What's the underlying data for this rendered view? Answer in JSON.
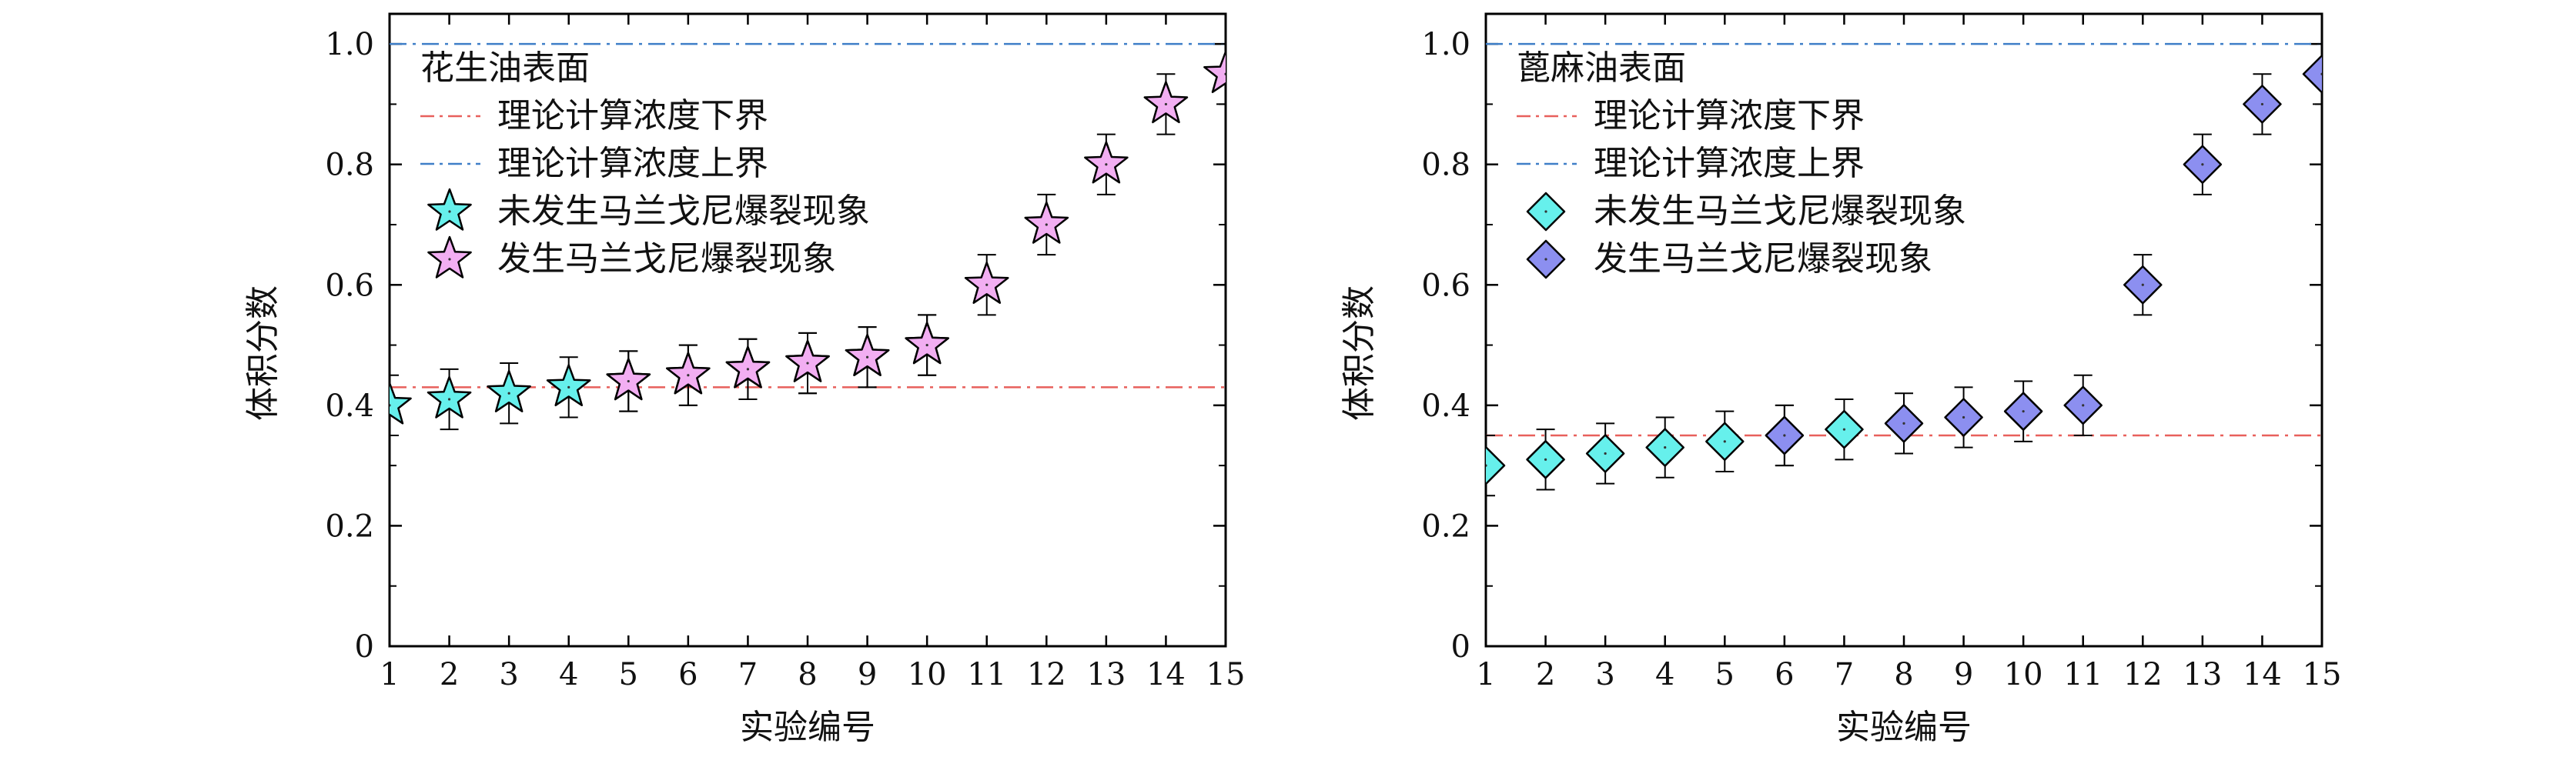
{
  "chart_data": [
    {
      "type": "scatter",
      "title": "",
      "xlabel": "实验编号",
      "ylabel": "体积分数",
      "xlim": [
        1,
        15
      ],
      "ylim": [
        0,
        1.05
      ],
      "xticks": [
        "1",
        "2",
        "3",
        "4",
        "5",
        "6",
        "7",
        "8",
        "9",
        "10",
        "11",
        "12",
        "13",
        "14",
        "15"
      ],
      "yticks": [
        "0",
        "0.2",
        "0.4",
        "0.6",
        "0.8",
        "1.0"
      ],
      "grid": false,
      "legend_position": "top-left",
      "legend_title": "花生油表面",
      "marker": "star",
      "reference_lines": [
        {
          "name": "理论计算浓度下界",
          "y": 0.43,
          "color": "#e8605c",
          "style": "dash-dot"
        },
        {
          "name": "理论计算浓度上界",
          "y": 1.0,
          "color": "#3f7fc8",
          "style": "dash-dot"
        }
      ],
      "series": [
        {
          "name": "未发生马兰戈尼爆裂现象",
          "color": "#66f0ec",
          "x": [
            1,
            2,
            3,
            4,
            5,
            6,
            7,
            8,
            9,
            10
          ],
          "y": [
            0.4,
            0.41,
            0.42,
            0.43,
            0.44,
            0.45,
            0.46,
            0.47,
            0.48,
            0.5
          ],
          "err": [
            0.05,
            0.05,
            0.05,
            0.05,
            0.05,
            0.05,
            0.05,
            0.05,
            0.05,
            0.05
          ]
        },
        {
          "name": "发生马兰戈尼爆裂现象",
          "color": "#f2aef2",
          "x": [
            5,
            6,
            7,
            8,
            9,
            10,
            11,
            12,
            13,
            14,
            15
          ],
          "y": [
            0.44,
            0.45,
            0.46,
            0.47,
            0.48,
            0.5,
            0.6,
            0.7,
            0.8,
            0.9,
            0.95
          ],
          "err": [
            0.05,
            0.05,
            0.05,
            0.05,
            0.05,
            0.05,
            0.05,
            0.05,
            0.05,
            0.05,
            0.05
          ]
        }
      ]
    },
    {
      "type": "scatter",
      "title": "",
      "xlabel": "实验编号",
      "ylabel": "体积分数",
      "xlim": [
        1,
        15
      ],
      "ylim": [
        0,
        1.05
      ],
      "xticks": [
        "1",
        "2",
        "3",
        "4",
        "5",
        "6",
        "7",
        "8",
        "9",
        "10",
        "11",
        "12",
        "13",
        "14",
        "15"
      ],
      "yticks": [
        "0",
        "0.2",
        "0.4",
        "0.6",
        "0.8",
        "1.0"
      ],
      "grid": false,
      "legend_position": "top-left",
      "legend_title": "蓖麻油表面",
      "marker": "diamond",
      "reference_lines": [
        {
          "name": "理论计算浓度下界",
          "y": 0.35,
          "color": "#e8605c",
          "style": "dash-dot"
        },
        {
          "name": "理论计算浓度上界",
          "y": 1.0,
          "color": "#3f7fc8",
          "style": "dash-dot"
        }
      ],
      "series": [
        {
          "name": "未发生马兰戈尼爆裂现象",
          "color": "#66f0ec",
          "x": [
            1,
            2,
            3,
            4,
            5,
            6,
            7
          ],
          "y": [
            0.3,
            0.31,
            0.32,
            0.33,
            0.34,
            0.35,
            0.36
          ],
          "err": [
            0.05,
            0.05,
            0.05,
            0.05,
            0.05,
            0.05,
            0.05
          ]
        },
        {
          "name": "发生马兰戈尼爆裂现象",
          "color": "#8c8ff0",
          "x": [
            6,
            8,
            9,
            10,
            11,
            12,
            13,
            14,
            15
          ],
          "y": [
            0.35,
            0.37,
            0.38,
            0.39,
            0.4,
            0.6,
            0.8,
            0.9,
            0.95
          ],
          "err": [
            0.05,
            0.05,
            0.05,
            0.05,
            0.05,
            0.05,
            0.05,
            0.05,
            0.05
          ]
        }
      ]
    }
  ]
}
